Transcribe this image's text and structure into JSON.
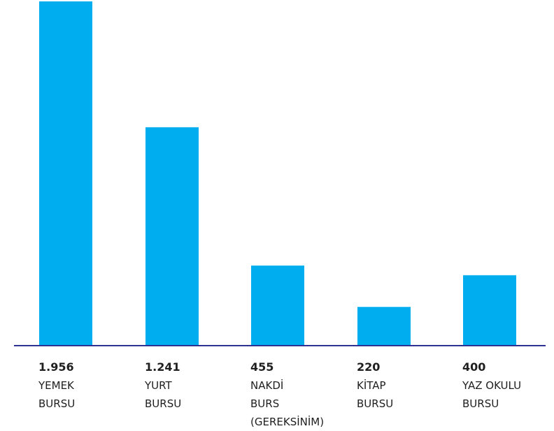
{
  "chart_data": {
    "type": "bar",
    "categories": [
      [
        "YEMEK",
        "BURSU"
      ],
      [
        "YURT",
        "BURSU"
      ],
      [
        "NAKDİ",
        "BURS",
        "(GEREKSİNİM)"
      ],
      [
        "KİTAP",
        "BURSU"
      ],
      [
        "YAZ OKULU",
        "BURSU"
      ]
    ],
    "value_labels": [
      "1.956",
      "1.241",
      "455",
      "220",
      "400"
    ],
    "values": [
      1956,
      1241,
      455,
      220,
      400
    ],
    "title": "",
    "xlabel": "",
    "ylabel": "",
    "ylim": [
      0,
      1956
    ],
    "grid": false,
    "bar_color": "#00adef",
    "axis_color": "#2e3192"
  }
}
